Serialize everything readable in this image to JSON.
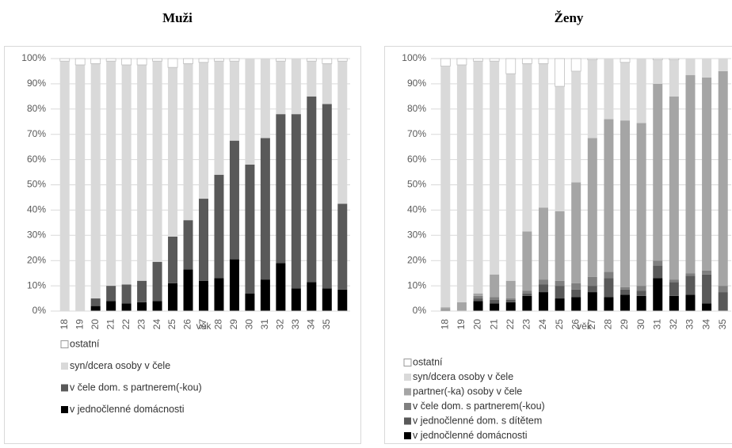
{
  "chart_data": [
    {
      "type": "bar",
      "stacked": true,
      "title": "Muži",
      "x_label": "věk",
      "categories": [
        "18",
        "19",
        "20",
        "21",
        "22",
        "23",
        "24",
        "25",
        "26",
        "27",
        "28",
        "29",
        "30",
        "31",
        "32",
        "33",
        "34",
        "35",
        null
      ],
      "ylim": [
        0,
        100
      ],
      "yticks": [
        {
          "value": 0,
          "label": "0%"
        },
        {
          "value": 10,
          "label": "10%"
        },
        {
          "value": 20,
          "label": "20%"
        },
        {
          "value": 30,
          "label": "30%"
        },
        {
          "value": 40,
          "label": "40%"
        },
        {
          "value": 50,
          "label": "50%"
        },
        {
          "value": 60,
          "label": "60%"
        },
        {
          "value": 70,
          "label": "70%"
        },
        {
          "value": 80,
          "label": "80%"
        },
        {
          "value": 90,
          "label": "90%"
        },
        {
          "value": 100,
          "label": "100%"
        }
      ],
      "grid": true,
      "series": [
        {
          "name": "v jednočlenné domácnosti",
          "color": "#000000",
          "values": [
            0,
            0,
            2,
            4,
            3,
            3.5,
            4,
            11,
            16.5,
            12,
            13,
            20.5,
            7,
            12.5,
            19,
            9,
            11.5,
            9,
            8.5
          ]
        },
        {
          "name": "v čele dom. s partnerem(-kou)",
          "color": "#595959",
          "values": [
            0,
            0,
            3,
            6,
            7.5,
            8.5,
            15.5,
            18.5,
            19.5,
            32.5,
            41,
            47,
            51,
            56,
            59,
            69,
            73.5,
            73,
            34
          ]
        },
        {
          "name": "syn/dcera osoby v čele",
          "color": "#d9d9d9",
          "values": [
            99,
            97.5,
            93,
            89,
            87,
            85.5,
            79.5,
            67,
            62,
            54,
            45,
            31.5,
            42,
            31.5,
            21,
            22,
            14,
            16,
            56.5
          ]
        },
        {
          "name": "ostatní",
          "color": "#ffffff",
          "values": [
            1,
            2.5,
            2,
            1,
            2.5,
            2.5,
            1,
            3.5,
            2,
            1.5,
            1,
            1,
            0,
            0,
            1,
            0,
            1,
            2,
            1
          ]
        }
      ]
    },
    {
      "type": "bar",
      "stacked": true,
      "title": "Ženy",
      "x_label": "věk",
      "categories": [
        "18",
        "19",
        "20",
        "21",
        "22",
        "23",
        "24",
        "25",
        "26",
        "27",
        "28",
        "29",
        "30",
        "31",
        "32",
        "33",
        "34",
        "35"
      ],
      "ylim": [
        0,
        100
      ],
      "yticks": [
        {
          "value": 0,
          "label": "0%"
        },
        {
          "value": 10,
          "label": "10%"
        },
        {
          "value": 20,
          "label": "20%"
        },
        {
          "value": 30,
          "label": "30%"
        },
        {
          "value": 40,
          "label": "40%"
        },
        {
          "value": 50,
          "label": "50%"
        },
        {
          "value": 60,
          "label": "60%"
        },
        {
          "value": 70,
          "label": "70%"
        },
        {
          "value": 80,
          "label": "80%"
        },
        {
          "value": 90,
          "label": "90%"
        },
        {
          "value": 100,
          "label": "100%"
        }
      ],
      "grid": true,
      "series": [
        {
          "name": "v jednočlenné domácnosti",
          "color": "#000000",
          "values": [
            0,
            0,
            4,
            3,
            3.5,
            6,
            7.5,
            5,
            5.5,
            7.5,
            5.5,
            6.5,
            6,
            13,
            6,
            6.5,
            3,
            0
          ]
        },
        {
          "name": "v jednočlenné dom. s dítětem",
          "color": "#595959",
          "values": [
            0,
            0,
            1,
            1.5,
            1,
            1,
            3,
            5,
            3,
            2.5,
            7.5,
            2,
            2,
            5,
            5.5,
            7.5,
            11.5,
            7.5
          ]
        },
        {
          "name": "v čele dom. s partnerem(-kou)",
          "color": "#7f7f7f",
          "values": [
            0.5,
            0,
            1,
            1,
            0.5,
            1,
            2,
            2,
            2.5,
            3.5,
            2.5,
            1,
            2,
            2,
            1,
            1,
            1.5,
            2.5
          ]
        },
        {
          "name": "partner(-ka) osoby v čele",
          "color": "#a5a5a5",
          "values": [
            1,
            3.5,
            1,
            9,
            7,
            23.5,
            28.5,
            27.5,
            40,
            55,
            60.5,
            66,
            64.5,
            70,
            72.5,
            78.5,
            76.5,
            85
          ]
        },
        {
          "name": "syn/dcera osoby v čele",
          "color": "#d9d9d9",
          "values": [
            95.5,
            94,
            92,
            84.5,
            82,
            66.5,
            57,
            49.5,
            44,
            31,
            24,
            23,
            25.5,
            9.5,
            14.5,
            6.5,
            7.5,
            5
          ]
        },
        {
          "name": "ostatní",
          "color": "#ffffff",
          "values": [
            3,
            2.5,
            1,
            1,
            6,
            2,
            2,
            11,
            5,
            0.5,
            0,
            1.5,
            0,
            0.5,
            0.5,
            0,
            0,
            0
          ]
        }
      ]
    }
  ]
}
